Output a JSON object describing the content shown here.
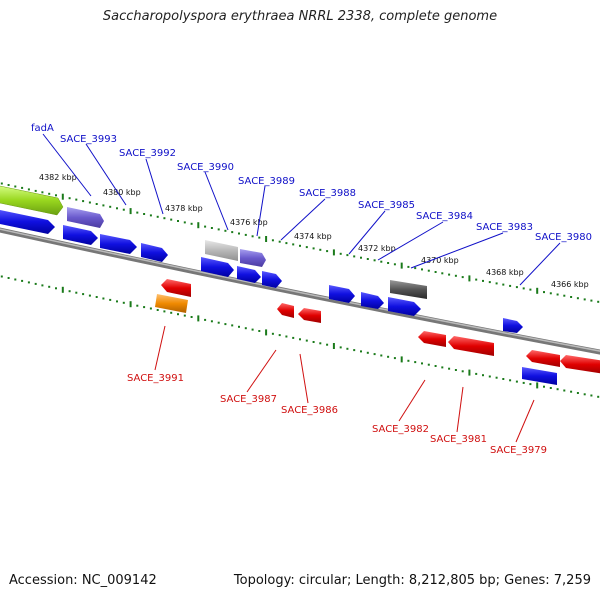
{
  "title": "Saccharopolyspora erythraea NRRL 2338, complete genome",
  "footer": {
    "accession": "Accession: NC_009142",
    "summary": "Topology: circular; Length: 8,212,805 bp; Genes: 7,259"
  },
  "colors": {
    "forward_label": "#1010c8",
    "reverse_label": "#d01010",
    "forward_gene": "#1414e0",
    "reverse_gene": "#e01010",
    "tick": "#1a7a1a",
    "backbone": "#888888"
  },
  "scale_ticks": [
    {
      "label": "4382 kbp"
    },
    {
      "label": "4380 kbp"
    },
    {
      "label": "4378 kbp"
    },
    {
      "label": "4376 kbp"
    },
    {
      "label": "4374 kbp"
    },
    {
      "label": "4372 kbp"
    },
    {
      "label": "4370 kbp"
    },
    {
      "label": "4368 kbp"
    },
    {
      "label": "4366 kbp"
    }
  ],
  "forward_labels": [
    {
      "text": "fadA"
    },
    {
      "text": "SACE_3993"
    },
    {
      "text": "SACE_3992"
    },
    {
      "text": "SACE_3990"
    },
    {
      "text": "SACE_3989"
    },
    {
      "text": "SACE_3988"
    },
    {
      "text": "SACE_3985"
    },
    {
      "text": "SACE_3984"
    },
    {
      "text": "SACE_3983"
    },
    {
      "text": "SACE_3980"
    }
  ],
  "reverse_labels": [
    {
      "text": "SACE_3991"
    },
    {
      "text": "SACE_3987"
    },
    {
      "text": "SACE_3986"
    },
    {
      "text": "SACE_3982"
    },
    {
      "text": "SACE_3981"
    },
    {
      "text": "SACE_3979"
    }
  ]
}
